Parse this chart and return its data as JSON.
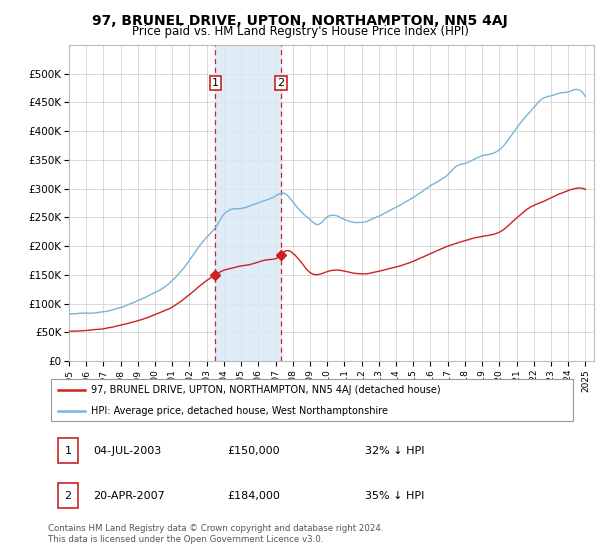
{
  "title": "97, BRUNEL DRIVE, UPTON, NORTHAMPTON, NN5 4AJ",
  "subtitle": "Price paid vs. HM Land Registry's House Price Index (HPI)",
  "legend_line1": "97, BRUNEL DRIVE, UPTON, NORTHAMPTON, NN5 4AJ (detached house)",
  "legend_line2": "HPI: Average price, detached house, West Northamptonshire",
  "transaction1_date": "04-JUL-2003",
  "transaction1_price": "£150,000",
  "transaction1_hpi": "32% ↓ HPI",
  "transaction2_date": "20-APR-2007",
  "transaction2_price": "£184,000",
  "transaction2_hpi": "35% ↓ HPI",
  "footnote1": "Contains HM Land Registry data © Crown copyright and database right 2024.",
  "footnote2": "This data is licensed under the Open Government Licence v3.0.",
  "hpi_color": "#7ab4d8",
  "price_color": "#cc2222",
  "transaction_color": "#cc2222",
  "shading_color": "#d8e8f5",
  "ylim_max": 550000,
  "ylim_min": 0,
  "transaction1_year": 2003.5,
  "transaction2_year": 2007.3
}
